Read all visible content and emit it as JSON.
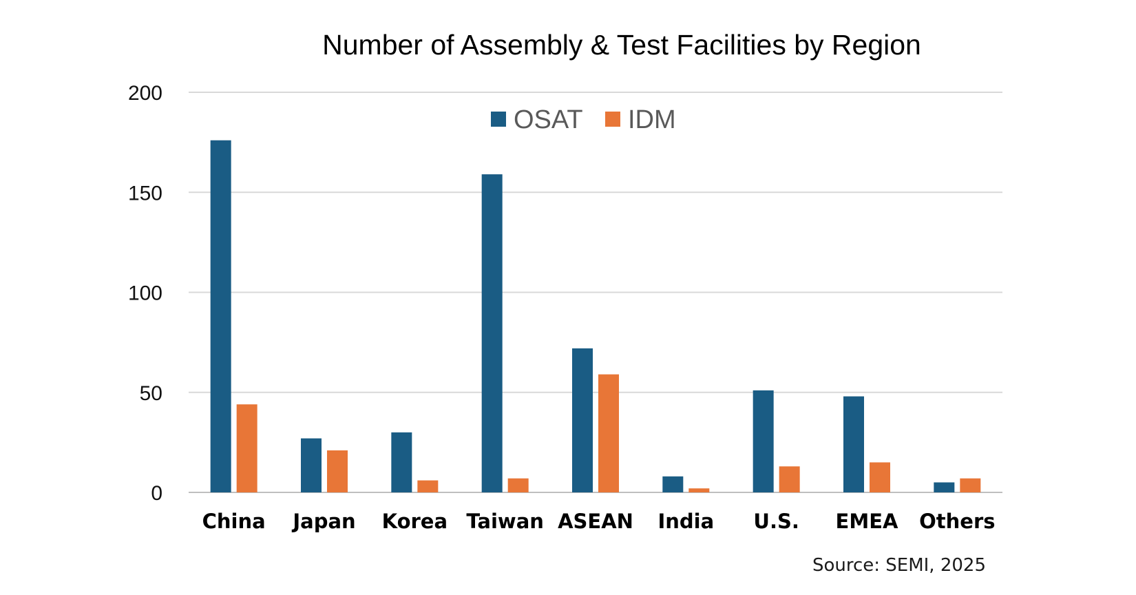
{
  "chart_data": {
    "type": "bar",
    "title": "Number of Assembly & Test Facilities by Region",
    "categories": [
      "China",
      "Japan",
      "Korea",
      "Taiwan",
      "ASEAN",
      "India",
      "U.S.",
      "EMEA",
      "Others"
    ],
    "series": [
      {
        "name": "OSAT",
        "color": "#1a5c84",
        "values": [
          176,
          27,
          30,
          159,
          72,
          8,
          51,
          48,
          5
        ]
      },
      {
        "name": "IDM",
        "color": "#e87637",
        "values": [
          44,
          21,
          6,
          7,
          59,
          2,
          13,
          15,
          7
        ]
      }
    ],
    "ylim": [
      0,
      200
    ],
    "yticks": [
      0,
      50,
      100,
      150,
      200
    ],
    "xlabel": "",
    "ylabel": "",
    "grid": true,
    "legend": "top-center",
    "source": "Source: SEMI, 2025"
  }
}
